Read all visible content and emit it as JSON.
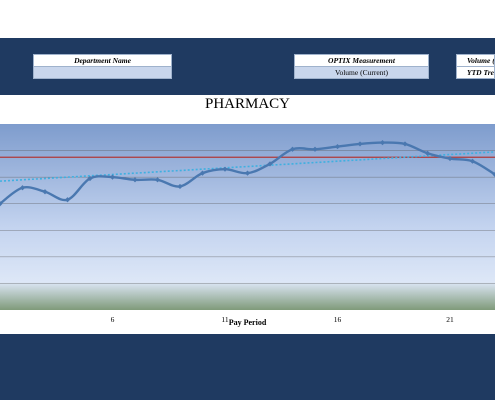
{
  "header": {
    "department": {
      "label": "Department Name",
      "value": ""
    },
    "measurement": {
      "label": "OPTIX Measurement",
      "value": "Volume (Current)"
    },
    "right": {
      "label": "Volume (",
      "value": "YTD Tre"
    }
  },
  "chart_data": {
    "type": "line",
    "title": "PHARMACY",
    "xlabel": "Pay Period",
    "ylabel": "",
    "xlim": [
      1,
      23
    ],
    "ylim": [
      0,
      7
    ],
    "x_ticks": [
      6,
      11,
      16,
      21
    ],
    "grid": true,
    "series": [
      {
        "x": [
          1,
          2,
          3,
          4,
          5,
          6,
          7,
          8,
          9,
          10,
          11,
          12,
          13,
          14,
          15,
          16,
          17,
          18,
          19,
          20,
          21,
          22,
          23
        ],
        "values": [
          4.0,
          4.6,
          4.45,
          4.15,
          4.95,
          5.0,
          4.9,
          4.9,
          4.65,
          5.15,
          5.3,
          5.15,
          5.5,
          6.05,
          6.05,
          6.15,
          6.25,
          6.3,
          6.25,
          5.9,
          5.7,
          5.6,
          5.1
        ]
      },
      {
        "kind": "average",
        "values": [
          5.75
        ]
      },
      {
        "kind": "trend",
        "start": 4.85,
        "end": 5.95
      }
    ],
    "colors": {
      "line": "#4a78b0",
      "average": "#b03a3a",
      "trend": "#3fb0e0",
      "plot_top": "#7e9ccd",
      "plot_bottom": "#dde7f7",
      "grid": "#555555"
    }
  }
}
